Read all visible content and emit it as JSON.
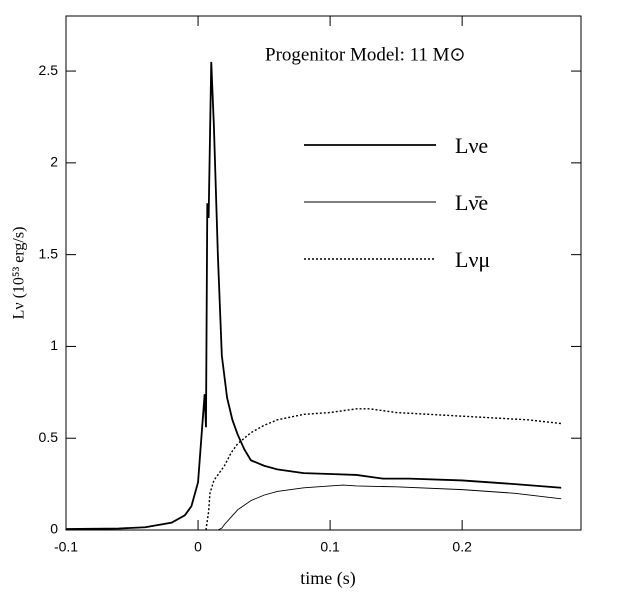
{
  "chart_data": {
    "type": "line",
    "annotation": "Progenitor Model: 11 M⊙",
    "x_label": "time  (s)",
    "y_label": "Lν (10⁵³ erg/s)",
    "xlim": [
      -0.1,
      0.29
    ],
    "xticks": [
      -0.1,
      0,
      0.1,
      0.2
    ],
    "ylim": [
      0,
      2.8
    ],
    "yticks": [
      0,
      0.5,
      1,
      1.5,
      2,
      2.5
    ],
    "grid": false,
    "series": [
      {
        "name": "Lνe",
        "color": "#000000",
        "line_style": "solid",
        "line_width": 1.8,
        "x": [
          -0.1,
          -0.06,
          -0.04,
          -0.02,
          -0.01,
          -0.005,
          0,
          0.003,
          0.005,
          0.006,
          0.007,
          0.008,
          0.01,
          0.012,
          0.015,
          0.018,
          0.022,
          0.026,
          0.03,
          0.035,
          0.04,
          0.05,
          0.06,
          0.08,
          0.1,
          0.12,
          0.14,
          0.16,
          0.2,
          0.24,
          0.275
        ],
        "values": [
          0.005,
          0.008,
          0.015,
          0.04,
          0.08,
          0.13,
          0.26,
          0.55,
          0.74,
          0.56,
          1.78,
          1.7,
          2.55,
          2.2,
          1.5,
          0.95,
          0.72,
          0.6,
          0.52,
          0.44,
          0.38,
          0.35,
          0.33,
          0.31,
          0.305,
          0.3,
          0.28,
          0.28,
          0.27,
          0.25,
          0.23
        ]
      },
      {
        "name": "Lν̄e",
        "color": "#000000",
        "line_style": "solid",
        "line_width": 0.9,
        "x": [
          0.015,
          0.018,
          0.02,
          0.025,
          0.03,
          0.04,
          0.05,
          0.06,
          0.08,
          0.1,
          0.11,
          0.12,
          0.15,
          0.2,
          0.24,
          0.275
        ],
        "values": [
          0,
          0.01,
          0.03,
          0.07,
          0.11,
          0.16,
          0.19,
          0.21,
          0.23,
          0.24,
          0.245,
          0.24,
          0.235,
          0.22,
          0.2,
          0.17
        ]
      },
      {
        "name": "Lνμ",
        "color": "#000000",
        "line_style": "dotted",
        "line_width": 1.4,
        "x": [
          0.006,
          0.008,
          0.009,
          0.012,
          0.015,
          0.02,
          0.025,
          0.03,
          0.04,
          0.05,
          0.06,
          0.08,
          0.1,
          0.12,
          0.13,
          0.15,
          0.2,
          0.25,
          0.275
        ],
        "values": [
          0,
          0.1,
          0.2,
          0.27,
          0.3,
          0.35,
          0.42,
          0.47,
          0.53,
          0.57,
          0.6,
          0.63,
          0.64,
          0.66,
          0.66,
          0.64,
          0.62,
          0.6,
          0.58
        ]
      }
    ]
  }
}
